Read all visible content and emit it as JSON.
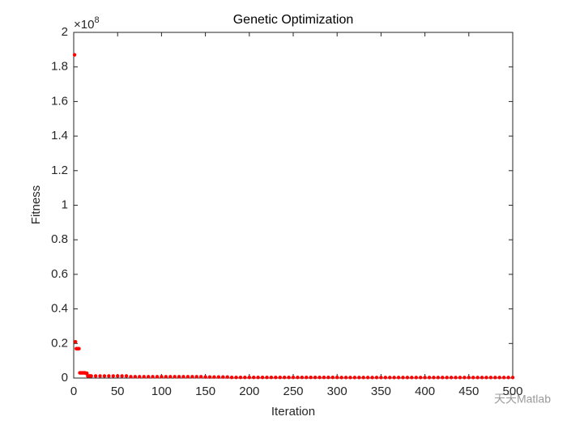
{
  "chart_data": {
    "type": "scatter",
    "title": "Genetic Optimization",
    "x_label": "Iteration",
    "y_label": "Fitness",
    "y_multiplier": {
      "base": "×10",
      "exponent": "8"
    },
    "watermark": "天天Matlab",
    "color": "#ff0000",
    "xlim": [
      0,
      500
    ],
    "xticks": [
      0,
      50,
      100,
      150,
      200,
      250,
      300,
      350,
      400,
      450,
      500
    ],
    "ylim": [
      0,
      2
    ],
    "yticks": [
      0,
      0.2,
      0.4,
      0.6,
      0.8,
      1,
      1.2,
      1.4,
      1.6,
      1.8,
      2
    ],
    "x": [
      1,
      2,
      3,
      4,
      5,
      6,
      7,
      8,
      9,
      10,
      11,
      12,
      13,
      14,
      15,
      16,
      17,
      18,
      19,
      20,
      25,
      30,
      35,
      40,
      45,
      50,
      55,
      60,
      65,
      70,
      75,
      80,
      85,
      90,
      95,
      100,
      105,
      110,
      115,
      120,
      125,
      130,
      135,
      140,
      145,
      150,
      155,
      160,
      165,
      170,
      175,
      180,
      185,
      190,
      195,
      200,
      205,
      210,
      215,
      220,
      225,
      230,
      235,
      240,
      245,
      250,
      255,
      260,
      265,
      270,
      275,
      280,
      285,
      290,
      295,
      300,
      305,
      310,
      315,
      320,
      325,
      330,
      335,
      340,
      345,
      350,
      355,
      360,
      365,
      370,
      375,
      380,
      385,
      390,
      395,
      400,
      405,
      410,
      415,
      420,
      425,
      430,
      435,
      440,
      445,
      450,
      455,
      460,
      465,
      470,
      475,
      480,
      485,
      490,
      495,
      500
    ],
    "values": [
      1.87,
      0.21,
      0.17,
      0.17,
      0.17,
      0.17,
      0.03,
      0.03,
      0.03,
      0.03,
      0.03,
      0.03,
      0.03,
      0.028,
      0.028,
      0.012,
      0.012,
      0.012,
      0.012,
      0.012,
      0.012,
      0.012,
      0.012,
      0.012,
      0.012,
      0.012,
      0.012,
      0.012,
      0.008,
      0.008,
      0.008,
      0.008,
      0.008,
      0.008,
      0.008,
      0.008,
      0.008,
      0.008,
      0.008,
      0.008,
      0.008,
      0.008,
      0.008,
      0.008,
      0.008,
      0.006,
      0.006,
      0.006,
      0.006,
      0.006,
      0.006,
      0.004,
      0.004,
      0.004,
      0.004,
      0.004,
      0.004,
      0.004,
      0.004,
      0.004,
      0.004,
      0.004,
      0.004,
      0.004,
      0.004,
      0.004,
      0.004,
      0.004,
      0.004,
      0.004,
      0.004,
      0.004,
      0.004,
      0.004,
      0.004,
      0.004,
      0.003,
      0.003,
      0.003,
      0.003,
      0.003,
      0.003,
      0.003,
      0.003,
      0.003,
      0.003,
      0.003,
      0.003,
      0.003,
      0.003,
      0.003,
      0.003,
      0.003,
      0.003,
      0.003,
      0.003,
      0.003,
      0.003,
      0.003,
      0.003,
      0.003,
      0.003,
      0.003,
      0.003,
      0.003,
      0.003,
      0.003,
      0.003,
      0.003,
      0.003,
      0.003,
      0.003,
      0.003,
      0.003,
      0.003,
      0.003
    ]
  }
}
